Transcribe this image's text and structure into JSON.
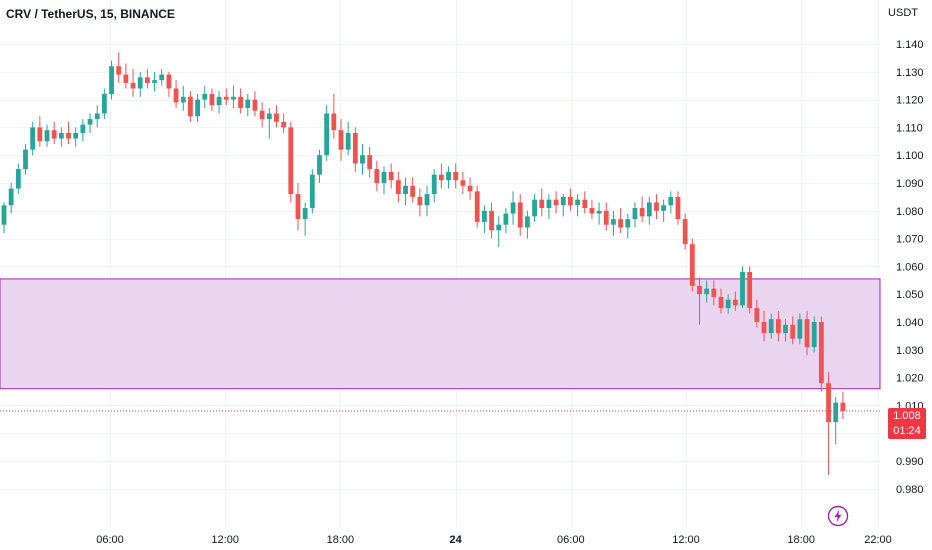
{
  "header": {
    "title": "CRV / TetherUS, 15, BINANCE",
    "unit": "USDT"
  },
  "price_tag": {
    "price": "1.008",
    "countdown": "01:24"
  },
  "icons": {
    "replay": "lightning-icon"
  },
  "colors": {
    "up": "#26a69a",
    "down": "#ef5350",
    "zone_fill": "#e9d5f0",
    "zone_border": "#9c27b0",
    "last_price": "#f23645"
  },
  "chart_data": {
    "type": "candlestick",
    "title": "CRV / TetherUS, 15, BINANCE",
    "ylabel": "USDT",
    "ylim": [
      0.974,
      1.155
    ],
    "yticks": [
      "1.140",
      "1.130",
      "1.120",
      "1.110",
      "1.100",
      "1.090",
      "1.080",
      "1.070",
      "1.060",
      "1.050",
      "1.040",
      "1.030",
      "1.020",
      "1.010",
      "1.000",
      "0.990",
      "0.980"
    ],
    "xticks": [
      {
        "label": "06:00",
        "hour": 6
      },
      {
        "label": "12:00",
        "hour": 12
      },
      {
        "label": "18:00",
        "hour": 18
      },
      {
        "label": "24",
        "hour": 24
      },
      {
        "label": "06:00",
        "hour": 30
      },
      {
        "label": "12:00",
        "hour": 36
      },
      {
        "label": "18:00",
        "hour": 42
      },
      {
        "label": "22:00",
        "hour": 46
      }
    ],
    "zone": {
      "top": 1.0555,
      "bottom": 1.016
    },
    "last_price": 1.008,
    "candles": [
      [
        1.075,
        1.083,
        1.072,
        1.082
      ],
      [
        1.082,
        1.09,
        1.079,
        1.088
      ],
      [
        1.088,
        1.097,
        1.086,
        1.095
      ],
      [
        1.095,
        1.104,
        1.093,
        1.102
      ],
      [
        1.102,
        1.112,
        1.1,
        1.11
      ],
      [
        1.11,
        1.114,
        1.103,
        1.105
      ],
      [
        1.105,
        1.111,
        1.103,
        1.109
      ],
      [
        1.109,
        1.112,
        1.104,
        1.106
      ],
      [
        1.106,
        1.11,
        1.103,
        1.108
      ],
      [
        1.108,
        1.112,
        1.104,
        1.106
      ],
      [
        1.106,
        1.11,
        1.103,
        1.108
      ],
      [
        1.108,
        1.113,
        1.105,
        1.111
      ],
      [
        1.111,
        1.115,
        1.108,
        1.113
      ],
      [
        1.113,
        1.118,
        1.11,
        1.115
      ],
      [
        1.115,
        1.124,
        1.113,
        1.122
      ],
      [
        1.122,
        1.134,
        1.12,
        1.132
      ],
      [
        1.132,
        1.137,
        1.126,
        1.129
      ],
      [
        1.129,
        1.133,
        1.124,
        1.126
      ],
      [
        1.126,
        1.131,
        1.121,
        1.124
      ],
      [
        1.124,
        1.13,
        1.121,
        1.128
      ],
      [
        1.128,
        1.131,
        1.124,
        1.126
      ],
      [
        1.126,
        1.13,
        1.123,
        1.127
      ],
      [
        1.127,
        1.131,
        1.125,
        1.129
      ],
      [
        1.129,
        1.13,
        1.121,
        1.124
      ],
      [
        1.124,
        1.127,
        1.117,
        1.119
      ],
      [
        1.119,
        1.125,
        1.116,
        1.121
      ],
      [
        1.121,
        1.123,
        1.112,
        1.114
      ],
      [
        1.114,
        1.122,
        1.112,
        1.12
      ],
      [
        1.12,
        1.125,
        1.117,
        1.122
      ],
      [
        1.122,
        1.124,
        1.116,
        1.118
      ],
      [
        1.118,
        1.123,
        1.115,
        1.121
      ],
      [
        1.121,
        1.124,
        1.118,
        1.12
      ],
      [
        1.12,
        1.125,
        1.117,
        1.121
      ],
      [
        1.121,
        1.124,
        1.115,
        1.117
      ],
      [
        1.117,
        1.122,
        1.114,
        1.12
      ],
      [
        1.12,
        1.123,
        1.114,
        1.116
      ],
      [
        1.116,
        1.119,
        1.11,
        1.113
      ],
      [
        1.113,
        1.117,
        1.106,
        1.115
      ],
      [
        1.115,
        1.118,
        1.11,
        1.112
      ],
      [
        1.112,
        1.115,
        1.108,
        1.11
      ],
      [
        1.11,
        1.112,
        1.083,
        1.086
      ],
      [
        1.086,
        1.09,
        1.073,
        1.077
      ],
      [
        1.077,
        1.083,
        1.071,
        1.081
      ],
      [
        1.081,
        1.095,
        1.079,
        1.093
      ],
      [
        1.093,
        1.102,
        1.09,
        1.1
      ],
      [
        1.1,
        1.118,
        1.098,
        1.115
      ],
      [
        1.115,
        1.122,
        1.106,
        1.109
      ],
      [
        1.109,
        1.113,
        1.098,
        1.102
      ],
      [
        1.102,
        1.112,
        1.1,
        1.108
      ],
      [
        1.108,
        1.11,
        1.094,
        1.097
      ],
      [
        1.097,
        1.104,
        1.093,
        1.1
      ],
      [
        1.1,
        1.103,
        1.092,
        1.095
      ],
      [
        1.095,
        1.098,
        1.087,
        1.09
      ],
      [
        1.09,
        1.096,
        1.086,
        1.094
      ],
      [
        1.094,
        1.097,
        1.088,
        1.091
      ],
      [
        1.091,
        1.094,
        1.083,
        1.086
      ],
      [
        1.086,
        1.092,
        1.082,
        1.089
      ],
      [
        1.089,
        1.092,
        1.083,
        1.085
      ],
      [
        1.085,
        1.088,
        1.078,
        1.082
      ],
      [
        1.082,
        1.089,
        1.078,
        1.086
      ],
      [
        1.086,
        1.095,
        1.083,
        1.093
      ],
      [
        1.093,
        1.097,
        1.088,
        1.091
      ],
      [
        1.091,
        1.096,
        1.088,
        1.094
      ],
      [
        1.094,
        1.097,
        1.088,
        1.091
      ],
      [
        1.091,
        1.094,
        1.086,
        1.089
      ],
      [
        1.089,
        1.092,
        1.084,
        1.087
      ],
      [
        1.087,
        1.089,
        1.074,
        1.076
      ],
      [
        1.076,
        1.082,
        1.072,
        1.08
      ],
      [
        1.08,
        1.083,
        1.07,
        1.073
      ],
      [
        1.073,
        1.078,
        1.067,
        1.075
      ],
      [
        1.075,
        1.081,
        1.072,
        1.079
      ],
      [
        1.079,
        1.087,
        1.075,
        1.083
      ],
      [
        1.083,
        1.086,
        1.071,
        1.074
      ],
      [
        1.074,
        1.08,
        1.07,
        1.078
      ],
      [
        1.078,
        1.086,
        1.076,
        1.084
      ],
      [
        1.084,
        1.088,
        1.078,
        1.081
      ],
      [
        1.081,
        1.086,
        1.077,
        1.084
      ],
      [
        1.084,
        1.087,
        1.079,
        1.082
      ],
      [
        1.082,
        1.086,
        1.078,
        1.085
      ],
      [
        1.085,
        1.088,
        1.08,
        1.082
      ],
      [
        1.082,
        1.086,
        1.078,
        1.084
      ],
      [
        1.084,
        1.087,
        1.079,
        1.081
      ],
      [
        1.081,
        1.084,
        1.077,
        1.079
      ],
      [
        1.079,
        1.083,
        1.075,
        1.08
      ],
      [
        1.08,
        1.083,
        1.073,
        1.075
      ],
      [
        1.075,
        1.08,
        1.071,
        1.077
      ],
      [
        1.077,
        1.081,
        1.072,
        1.074
      ],
      [
        1.074,
        1.079,
        1.07,
        1.077
      ],
      [
        1.077,
        1.083,
        1.074,
        1.081
      ],
      [
        1.081,
        1.085,
        1.076,
        1.078
      ],
      [
        1.078,
        1.085,
        1.075,
        1.083
      ],
      [
        1.083,
        1.086,
        1.077,
        1.08
      ],
      [
        1.08,
        1.084,
        1.076,
        1.082
      ],
      [
        1.082,
        1.087,
        1.079,
        1.085
      ],
      [
        1.085,
        1.087,
        1.075,
        1.077
      ],
      [
        1.077,
        1.079,
        1.066,
        1.068
      ],
      [
        1.068,
        1.07,
        1.051,
        1.053
      ],
      [
        1.053,
        1.056,
        1.039,
        1.05
      ],
      [
        1.05,
        1.055,
        1.047,
        1.052
      ],
      [
        1.052,
        1.055,
        1.046,
        1.049
      ],
      [
        1.049,
        1.052,
        1.043,
        1.045
      ],
      [
        1.045,
        1.05,
        1.043,
        1.048
      ],
      [
        1.048,
        1.051,
        1.044,
        1.046
      ],
      [
        1.046,
        1.06,
        1.045,
        1.058
      ],
      [
        1.058,
        1.06,
        1.043,
        1.045
      ],
      [
        1.045,
        1.048,
        1.038,
        1.04
      ],
      [
        1.04,
        1.044,
        1.033,
        1.036
      ],
      [
        1.036,
        1.043,
        1.034,
        1.041
      ],
      [
        1.041,
        1.044,
        1.033,
        1.036
      ],
      [
        1.036,
        1.041,
        1.033,
        1.039
      ],
      [
        1.039,
        1.042,
        1.032,
        1.034
      ],
      [
        1.034,
        1.043,
        1.032,
        1.041
      ],
      [
        1.041,
        1.044,
        1.028,
        1.031
      ],
      [
        1.031,
        1.042,
        1.029,
        1.04
      ],
      [
        1.04,
        1.042,
        1.015,
        1.018
      ],
      [
        1.018,
        1.022,
        0.985,
        1.004
      ],
      [
        1.004,
        1.013,
        0.996,
        1.011
      ],
      [
        1.011,
        1.015,
        1.005,
        1.008
      ]
    ]
  }
}
